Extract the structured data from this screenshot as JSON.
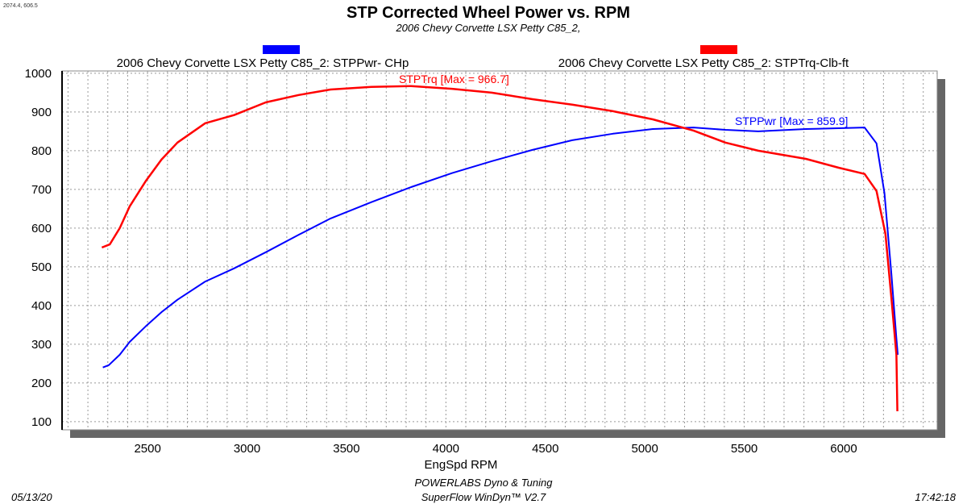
{
  "cursor_readout": "2074.4, 606.5",
  "chart_data": {
    "type": "line",
    "title": "STP Corrected Wheel Power vs. RPM",
    "subtitle": "2006 Chevy Corvette LSX Petty C85_2,",
    "xlabel": "EngSpd  RPM",
    "ylabel": "",
    "xlim": [
      2070,
      6470
    ],
    "ylim": [
      79,
      1006
    ],
    "grid": true,
    "x_ticks": [
      2500,
      3000,
      3500,
      4000,
      4500,
      5000,
      5500,
      6000
    ],
    "y_ticks": [
      100,
      200,
      300,
      400,
      500,
      600,
      700,
      800,
      900,
      1000
    ],
    "legend_placement": "top",
    "series": [
      {
        "name": "2006 Chevy Corvette LSX Petty C85_2: STPPwr- CHp",
        "color": "#0000ff",
        "annotation": "STPPwr [Max = 859.9]",
        "points": [
          [
            2275,
            240
          ],
          [
            2305,
            246
          ],
          [
            2360,
            273
          ],
          [
            2410,
            306
          ],
          [
            2490,
            346
          ],
          [
            2570,
            383
          ],
          [
            2650,
            415
          ],
          [
            2790,
            462
          ],
          [
            2935,
            496
          ],
          [
            3095,
            538
          ],
          [
            3260,
            583
          ],
          [
            3420,
            625
          ],
          [
            3625,
            667
          ],
          [
            3825,
            706
          ],
          [
            4030,
            742
          ],
          [
            4230,
            773
          ],
          [
            4435,
            802
          ],
          [
            4635,
            827
          ],
          [
            4840,
            844
          ],
          [
            5040,
            856
          ],
          [
            5245,
            860
          ],
          [
            5405,
            854
          ],
          [
            5570,
            850
          ],
          [
            5810,
            856
          ],
          [
            5975,
            858
          ],
          [
            6105,
            860
          ],
          [
            6165,
            819
          ],
          [
            6205,
            690
          ],
          [
            6240,
            481
          ],
          [
            6265,
            315
          ],
          [
            6272,
            273
          ]
        ]
      },
      {
        "name": "2006 Chevy Corvette LSX Petty C85_2: STPTrq-Clb-ft",
        "color": "#ff0000",
        "annotation": "STPTrq [Max = 966.7]",
        "points": [
          [
            2270,
            550
          ],
          [
            2310,
            558
          ],
          [
            2360,
            600
          ],
          [
            2410,
            656
          ],
          [
            2490,
            721
          ],
          [
            2570,
            777
          ],
          [
            2650,
            821
          ],
          [
            2790,
            871
          ],
          [
            2935,
            892
          ],
          [
            3095,
            925
          ],
          [
            3260,
            944
          ],
          [
            3420,
            958
          ],
          [
            3625,
            965
          ],
          [
            3825,
            967
          ],
          [
            4030,
            960
          ],
          [
            4230,
            950
          ],
          [
            4435,
            933
          ],
          [
            4635,
            919
          ],
          [
            4840,
            902
          ],
          [
            5040,
            881
          ],
          [
            5245,
            852
          ],
          [
            5405,
            821
          ],
          [
            5570,
            800
          ],
          [
            5810,
            779
          ],
          [
            5975,
            756
          ],
          [
            6105,
            740
          ],
          [
            6165,
            696
          ],
          [
            6210,
            585
          ],
          [
            6240,
            419
          ],
          [
            6265,
            273
          ],
          [
            6270,
            127
          ]
        ]
      }
    ]
  },
  "footer": {
    "company": "POWERLABS Dyno & Tuning",
    "software": "SuperFlow WinDyn™ V2.7",
    "date": "05/13/20",
    "time": "17:42:18"
  }
}
